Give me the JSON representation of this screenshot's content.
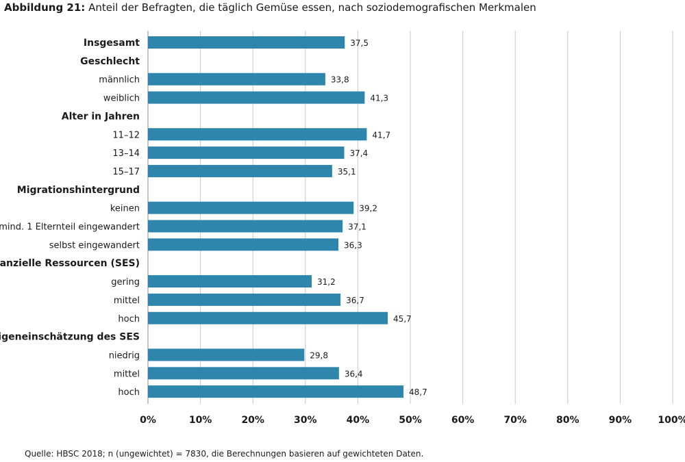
{
  "title": {
    "prefix": "Abbildung 21:",
    "text": "Anteil der Befragten, die täglich Gemüse essen, nach soziodemografischen Merkmalen"
  },
  "source": "Quelle: HBSC 2018; n (ungewichtet) = 7830, die Berechnungen basieren auf gewichteten Daten.",
  "colors": {
    "bar": "#2e86ad",
    "grid": "#c8c8c8",
    "text": "#1a1a1a"
  },
  "chart_data": {
    "type": "bar",
    "orientation": "horizontal",
    "xlim": [
      0,
      100
    ],
    "grid": true,
    "x_ticks": [
      "0%",
      "10%",
      "20%",
      "30%",
      "40%",
      "50%",
      "60%",
      "70%",
      "80%",
      "90%",
      "100%"
    ],
    "rows": [
      {
        "label": "Insgesamt",
        "value": 37.5,
        "value_label": "37,5",
        "bold": true
      },
      {
        "label": "Geschlecht",
        "value": null,
        "bold": true
      },
      {
        "label": "männlich",
        "value": 33.8,
        "value_label": "33,8"
      },
      {
        "label": "weiblich",
        "value": 41.3,
        "value_label": "41,3"
      },
      {
        "label": "Alter in Jahren",
        "value": null,
        "bold": true
      },
      {
        "label": "11–12",
        "value": 41.7,
        "value_label": "41,7"
      },
      {
        "label": "13–14",
        "value": 37.4,
        "value_label": "37,4"
      },
      {
        "label": "15–17",
        "value": 35.1,
        "value_label": "35,1"
      },
      {
        "label": "Migrationshintergrund",
        "value": null,
        "bold": true
      },
      {
        "label": "keinen",
        "value": 39.2,
        "value_label": "39,2"
      },
      {
        "label": "mind. 1 Elternteil eingewandert",
        "value": 37.1,
        "value_label": "37,1"
      },
      {
        "label": "selbst eingewandert",
        "value": 36.3,
        "value_label": "36,3"
      },
      {
        "label": "finanzielle Ressourcen (SES)",
        "value": null,
        "bold": true
      },
      {
        "label": "gering",
        "value": 31.2,
        "value_label": "31,2"
      },
      {
        "label": "mittel",
        "value": 36.7,
        "value_label": "36,7"
      },
      {
        "label": "hoch",
        "value": 45.7,
        "value_label": "45,7"
      },
      {
        "label": "Eigeneinschätzung des SES",
        "value": null,
        "bold": true
      },
      {
        "label": "niedrig",
        "value": 29.8,
        "value_label": "29,8"
      },
      {
        "label": "mittel",
        "value": 36.4,
        "value_label": "36,4"
      },
      {
        "label": "hoch",
        "value": 48.7,
        "value_label": "48,7"
      }
    ]
  }
}
